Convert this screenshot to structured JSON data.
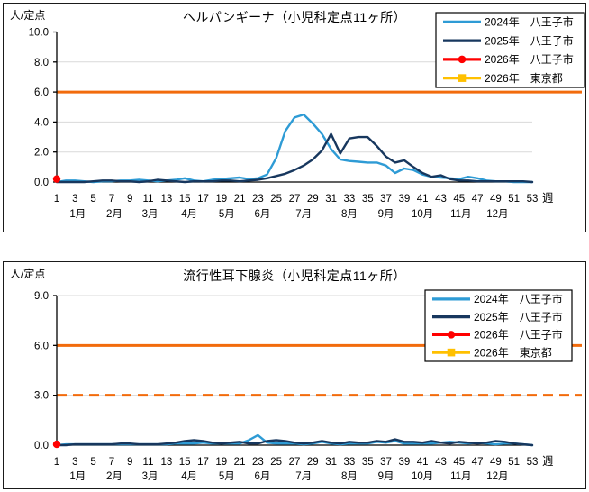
{
  "page": {
    "background": "#FFFFFF"
  },
  "chart_data": [
    {
      "type": "line",
      "title": "ヘルパンギーナ（小児科定点11ヶ所）",
      "ylabel": "人/定点",
      "xlabel": "週",
      "ylim": [
        0,
        10
      ],
      "y_tick_labels": [
        "0.0",
        "2.0",
        "4.0",
        "6.0",
        "8.0",
        "10.0"
      ],
      "x_tick_labels": [
        1,
        3,
        5,
        7,
        9,
        11,
        13,
        15,
        17,
        19,
        21,
        23,
        25,
        27,
        29,
        31,
        33,
        35,
        37,
        39,
        41,
        43,
        45,
        47,
        49,
        51,
        53
      ],
      "month_labels": [
        "1月",
        "2月",
        "3月",
        "4月",
        "5月",
        "6月",
        "7月",
        "8月",
        "9月",
        "10月",
        "11月",
        "12月"
      ],
      "grid": true,
      "grid_color": "#D9D9D9",
      "axis_color": "#000000",
      "legend_position": "top-right",
      "thresholds": [
        {
          "y": 6.0,
          "style": "solid",
          "color": "#F26B0C"
        }
      ],
      "series": [
        {
          "name": "2024年　八王子市",
          "color": "#2E9BD5",
          "marker": null,
          "values": [
            0.0,
            0.1,
            0.1,
            0.05,
            0.0,
            0.05,
            0.05,
            0.1,
            0.1,
            0.15,
            0.1,
            0.05,
            0.1,
            0.15,
            0.25,
            0.1,
            0.05,
            0.15,
            0.2,
            0.25,
            0.3,
            0.2,
            0.25,
            0.5,
            1.6,
            3.4,
            4.3,
            4.5,
            3.9,
            3.2,
            2.2,
            1.5,
            1.4,
            1.35,
            1.3,
            1.3,
            1.1,
            0.6,
            0.9,
            0.8,
            0.5,
            0.35,
            0.3,
            0.25,
            0.2,
            0.35,
            0.25,
            0.1,
            0.05,
            0.05,
            0.0,
            0.0,
            0.0
          ]
        },
        {
          "name": "2025年　八王子市",
          "color": "#17375E",
          "marker": null,
          "values": [
            0.0,
            0.0,
            0.0,
            0.0,
            0.05,
            0.1,
            0.1,
            0.05,
            0.05,
            0.0,
            0.05,
            0.15,
            0.1,
            0.05,
            0.0,
            0.05,
            0.05,
            0.05,
            0.1,
            0.1,
            0.05,
            0.1,
            0.15,
            0.25,
            0.4,
            0.55,
            0.8,
            1.1,
            1.5,
            2.1,
            3.2,
            1.9,
            2.9,
            3.0,
            3.0,
            2.4,
            1.7,
            1.3,
            1.45,
            1.0,
            0.6,
            0.35,
            0.45,
            0.2,
            0.1,
            0.1,
            0.05,
            0.05,
            0.05,
            0.05,
            0.05,
            0.05,
            0.0
          ]
        },
        {
          "name": "2026年　八王子市",
          "color": "#FF0000",
          "marker": "circle",
          "points": [
            {
              "week": 1,
              "value": 0.2
            }
          ]
        },
        {
          "name": "2026年　東京都",
          "color": "#FFC000",
          "marker": "square",
          "points": []
        }
      ]
    },
    {
      "type": "line",
      "title": "流行性耳下腺炎（小児科定点11ヶ所）",
      "ylabel": "人/定点",
      "xlabel": "週",
      "ylim": [
        0,
        9
      ],
      "y_tick_labels": [
        "0.0",
        "3.0",
        "6.0",
        "9.0"
      ],
      "x_tick_labels": [
        1,
        3,
        5,
        7,
        9,
        11,
        13,
        15,
        17,
        19,
        21,
        23,
        25,
        27,
        29,
        31,
        33,
        35,
        37,
        39,
        41,
        43,
        45,
        47,
        49,
        51,
        53
      ],
      "month_labels": [
        "1月",
        "2月",
        "3月",
        "4月",
        "5月",
        "6月",
        "7月",
        "8月",
        "9月",
        "10月",
        "11月",
        "12月"
      ],
      "grid": true,
      "grid_color": "#D9D9D9",
      "axis_color": "#000000",
      "legend_position": "top-right",
      "thresholds": [
        {
          "y": 6.0,
          "style": "solid",
          "color": "#F26B0C"
        },
        {
          "y": 3.0,
          "style": "dashed",
          "color": "#F26B0C"
        }
      ],
      "series": [
        {
          "name": "2024年　八王子市",
          "color": "#2E9BD5",
          "marker": null,
          "values": [
            0.0,
            0.05,
            0.05,
            0.05,
            0.05,
            0.05,
            0.05,
            0.05,
            0.05,
            0.05,
            0.05,
            0.05,
            0.05,
            0.1,
            0.1,
            0.1,
            0.15,
            0.1,
            0.1,
            0.1,
            0.1,
            0.3,
            0.6,
            0.15,
            0.1,
            0.1,
            0.1,
            0.05,
            0.1,
            0.2,
            0.1,
            0.05,
            0.1,
            0.1,
            0.1,
            0.2,
            0.15,
            0.25,
            0.1,
            0.1,
            0.1,
            0.1,
            0.15,
            0.2,
            0.15,
            0.1,
            0.15,
            0.1,
            0.05,
            0.1,
            0.1,
            0.05,
            0.0
          ]
        },
        {
          "name": "2025年　八王子市",
          "color": "#17375E",
          "marker": null,
          "values": [
            0.0,
            0.0,
            0.05,
            0.05,
            0.05,
            0.05,
            0.05,
            0.1,
            0.1,
            0.05,
            0.05,
            0.05,
            0.1,
            0.15,
            0.25,
            0.3,
            0.25,
            0.15,
            0.1,
            0.15,
            0.2,
            0.1,
            0.1,
            0.25,
            0.3,
            0.25,
            0.15,
            0.1,
            0.15,
            0.25,
            0.15,
            0.1,
            0.2,
            0.15,
            0.15,
            0.25,
            0.2,
            0.35,
            0.2,
            0.2,
            0.15,
            0.25,
            0.15,
            0.1,
            0.2,
            0.15,
            0.1,
            0.15,
            0.25,
            0.2,
            0.1,
            0.05,
            0.0
          ]
        },
        {
          "name": "2026年　八王子市",
          "color": "#FF0000",
          "marker": "circle",
          "points": [
            {
              "week": 1,
              "value": 0.05
            }
          ]
        },
        {
          "name": "2026年　東京都",
          "color": "#FFC000",
          "marker": "square",
          "points": []
        }
      ]
    }
  ]
}
